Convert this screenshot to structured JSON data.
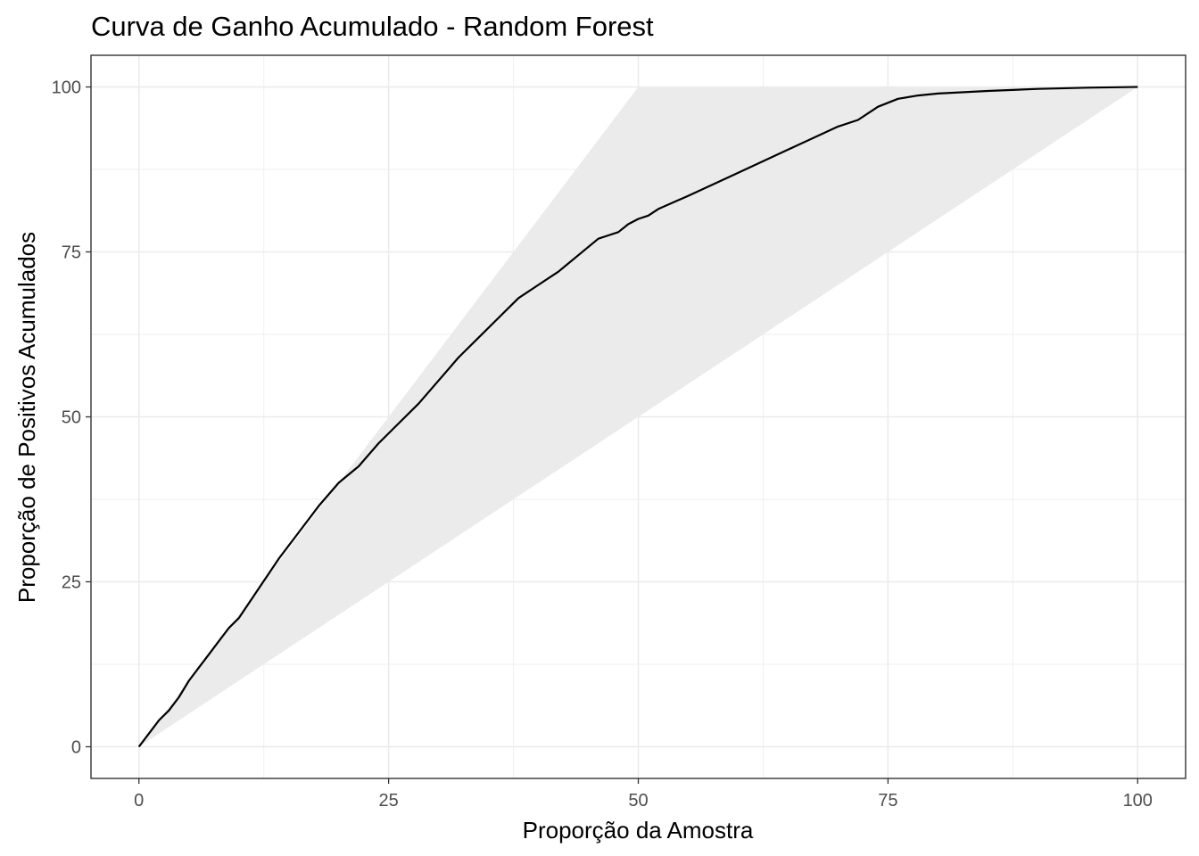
{
  "chart_data": {
    "type": "line",
    "title": "Curva de Ganho Acumulado - Random Forest",
    "xlabel": "Proporção da Amostra",
    "ylabel": "Proporção de Positivos Acumulados",
    "xlim": [
      -4.8,
      104.8
    ],
    "ylim": [
      -4.8,
      104.8
    ],
    "x_ticks": [
      0,
      25,
      50,
      75,
      100
    ],
    "y_ticks": [
      0,
      25,
      50,
      75,
      100
    ],
    "x_tick_labels": [
      "0",
      "25",
      "50",
      "75",
      "100"
    ],
    "y_tick_labels": [
      "0",
      "25",
      "50",
      "75",
      "100"
    ],
    "grid": true,
    "legend": "none",
    "band": {
      "upper": [
        [
          0,
          0
        ],
        [
          50,
          100
        ],
        [
          100,
          100
        ]
      ],
      "lower": [
        [
          0,
          0
        ],
        [
          100,
          100
        ]
      ],
      "color": "#ebebeb"
    },
    "series": [
      {
        "color": "#000000",
        "x": [
          0,
          1,
          2,
          3,
          4,
          5,
          6,
          7,
          8,
          9,
          10,
          12,
          14,
          16,
          18,
          20,
          22,
          24,
          26,
          28,
          30,
          32,
          34,
          36,
          38,
          40,
          42,
          44,
          46,
          47,
          48,
          49,
          50,
          51,
          52,
          55,
          60,
          65,
          70,
          72,
          74,
          76,
          78,
          80,
          85,
          90,
          95,
          100
        ],
        "y": [
          0,
          2,
          4,
          5.5,
          7.5,
          10,
          12,
          14,
          16,
          18,
          19.5,
          24,
          28.5,
          32.5,
          36.5,
          40,
          42.5,
          46,
          49,
          52,
          55.5,
          59,
          62,
          65,
          68,
          70,
          72,
          74.5,
          77,
          77.5,
          78,
          79.2,
          80,
          80.5,
          81.5,
          83.5,
          87,
          90.5,
          94,
          95,
          97,
          98.2,
          98.7,
          99,
          99.4,
          99.7,
          99.9,
          100
        ]
      }
    ]
  }
}
